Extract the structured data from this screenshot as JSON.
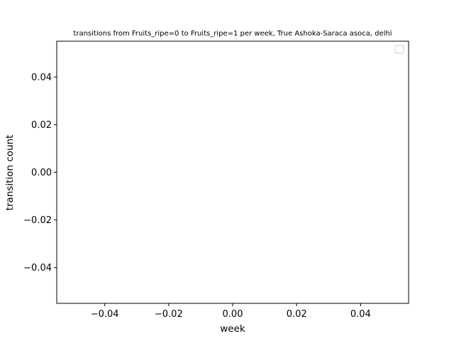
{
  "chart_data": {
    "type": "line",
    "title": "transitions from Fruits_ripe=0 to Fruits_ripe=1 per week, True Ashoka-Saraca asoca, delhi",
    "xlabel": "week",
    "ylabel": "transition count",
    "xlim": [
      -0.055,
      0.055
    ],
    "ylim": [
      -0.055,
      0.055
    ],
    "x_ticks": [
      -0.04,
      -0.02,
      0.0,
      0.02,
      0.04
    ],
    "x_tick_labels": [
      "−0.04",
      "−0.02",
      "0.00",
      "0.02",
      "0.04"
    ],
    "y_ticks": [
      -0.04,
      -0.02,
      0.0,
      0.02,
      0.04
    ],
    "y_tick_labels": [
      "−0.04",
      "−0.02",
      "0.00",
      "0.02",
      "0.04"
    ],
    "series": [],
    "legend": {
      "placement": "top-right",
      "entries": []
    },
    "grid": false,
    "colors": {
      "axes": "#000000",
      "background": "#ffffff",
      "legend_border": "#cccccc"
    }
  }
}
